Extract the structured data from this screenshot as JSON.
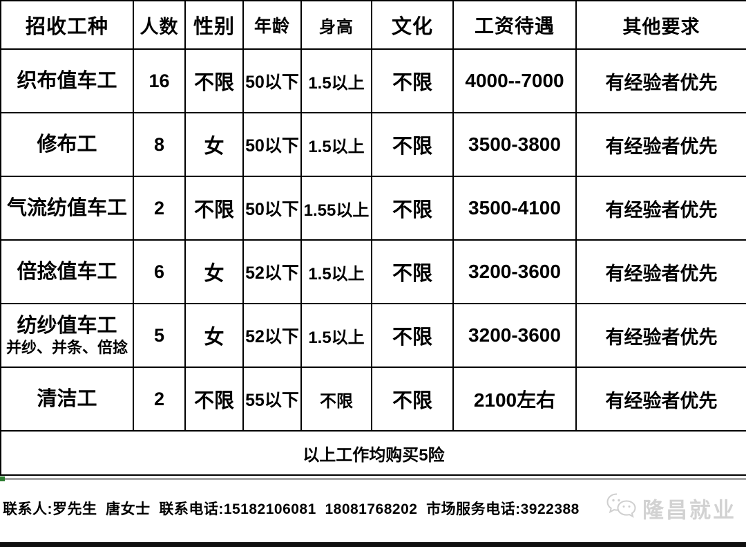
{
  "table": {
    "headers": [
      "招收工种",
      "人数",
      "性别",
      "年龄",
      "身高",
      "文化",
      "工资待遇",
      "其他要求"
    ],
    "rows": [
      {
        "job": "织布值车工",
        "job2": "",
        "count": "16",
        "gender": "不限",
        "age": "50以下",
        "height": "1.5以上",
        "edu": "不限",
        "salary": "4000--7000",
        "other": "有经验者优先"
      },
      {
        "job": "修布工",
        "job2": "",
        "count": "8",
        "gender": "女",
        "age": "50以下",
        "height": "1.5以上",
        "edu": "不限",
        "salary": "3500-3800",
        "other": "有经验者优先"
      },
      {
        "job": "气流纺值车工",
        "job2": "",
        "count": "2",
        "gender": "不限",
        "age": "50以下",
        "height": "1.55以上",
        "edu": "不限",
        "salary": "3500-4100",
        "other": "有经验者优先"
      },
      {
        "job": "倍捻值车工",
        "job2": "",
        "count": "6",
        "gender": "女",
        "age": "52以下",
        "height": "1.5以上",
        "edu": "不限",
        "salary": "3200-3600",
        "other": "有经验者优先"
      },
      {
        "job": "纺纱值车工",
        "job2": "并纱、并条、倍捻",
        "count": "5",
        "gender": "女",
        "age": "52以下",
        "height": "1.5以上",
        "edu": "不限",
        "salary": "3200-3600",
        "other": "有经验者优先"
      },
      {
        "job": "清洁工",
        "job2": "",
        "count": "2",
        "gender": "不限",
        "age": "55以下",
        "height": "不限",
        "edu": "不限",
        "salary": "2100左右",
        "other": "有经验者优先"
      }
    ],
    "footer_note": "以上工作均购买5险"
  },
  "contact": {
    "line": "联系人:罗先生  唐女士  联系电话:15182106081  18081768202  市场服务电话:3922388"
  },
  "watermark": {
    "icon": "wechat-icon",
    "label": "隆昌就业",
    "color": "#d2d2d2"
  },
  "colors": {
    "table_border": "#000000",
    "text": "#000000",
    "divider_line": "#a6a6a6",
    "green_mark": "#2e7d32",
    "bottom_bar": "#101010"
  }
}
